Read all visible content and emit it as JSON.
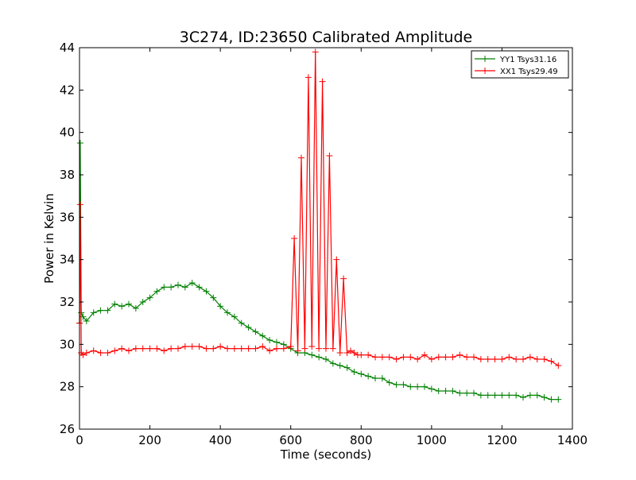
{
  "chart_data": {
    "type": "line",
    "title": "3C274, ID:23650 Calibrated Amplitude",
    "xlabel": "Time (seconds)",
    "ylabel": "Power in Kelvin",
    "xlim": [
      0,
      1400
    ],
    "ylim": [
      26,
      44
    ],
    "xticks": [
      0,
      200,
      400,
      600,
      800,
      1000,
      1200,
      1400
    ],
    "yticks": [
      26,
      28,
      30,
      32,
      34,
      36,
      38,
      40,
      42,
      44
    ],
    "grid": false,
    "legend_position": "top-right",
    "marker": "plus",
    "series": [
      {
        "name": "YY1 Tsys31.16",
        "color": "#008000",
        "x": [
          0,
          2,
          5,
          10,
          20,
          40,
          60,
          80,
          100,
          120,
          140,
          160,
          180,
          200,
          220,
          240,
          260,
          280,
          300,
          320,
          340,
          360,
          380,
          400,
          420,
          440,
          460,
          480,
          500,
          520,
          540,
          560,
          580,
          600,
          620,
          640,
          660,
          680,
          700,
          720,
          740,
          760,
          780,
          800,
          820,
          840,
          860,
          880,
          900,
          920,
          940,
          960,
          980,
          1000,
          1020,
          1040,
          1060,
          1080,
          1100,
          1120,
          1140,
          1160,
          1180,
          1200,
          1220,
          1240,
          1260,
          1280,
          1300,
          1320,
          1340,
          1360
        ],
        "y": [
          31.0,
          39.5,
          31.5,
          31.3,
          31.1,
          31.5,
          31.6,
          31.6,
          31.9,
          31.8,
          31.9,
          31.7,
          32.0,
          32.2,
          32.5,
          32.7,
          32.7,
          32.8,
          32.7,
          32.9,
          32.7,
          32.5,
          32.2,
          31.8,
          31.5,
          31.3,
          31.0,
          30.8,
          30.6,
          30.4,
          30.2,
          30.1,
          30.0,
          29.8,
          29.6,
          29.6,
          29.5,
          29.4,
          29.3,
          29.1,
          29.0,
          28.9,
          28.7,
          28.6,
          28.5,
          28.4,
          28.4,
          28.2,
          28.1,
          28.1,
          28.0,
          28.0,
          28.0,
          27.9,
          27.8,
          27.8,
          27.8,
          27.7,
          27.7,
          27.7,
          27.6,
          27.6,
          27.6,
          27.6,
          27.6,
          27.6,
          27.5,
          27.6,
          27.6,
          27.5,
          27.4,
          27.4
        ]
      },
      {
        "name": "XX1 Tsys29.49",
        "color": "#ff0000",
        "x": [
          0,
          2,
          5,
          10,
          20,
          40,
          60,
          80,
          100,
          120,
          140,
          160,
          180,
          200,
          220,
          240,
          260,
          280,
          300,
          320,
          340,
          360,
          380,
          400,
          420,
          440,
          460,
          480,
          500,
          520,
          540,
          560,
          580,
          600,
          610,
          620,
          630,
          640,
          650,
          660,
          670,
          680,
          690,
          700,
          710,
          720,
          730,
          740,
          750,
          760,
          770,
          780,
          790,
          800,
          820,
          840,
          860,
          880,
          900,
          920,
          940,
          960,
          980,
          1000,
          1020,
          1040,
          1060,
          1080,
          1100,
          1120,
          1140,
          1160,
          1180,
          1200,
          1220,
          1240,
          1260,
          1280,
          1300,
          1320,
          1340,
          1360
        ],
        "y": [
          31.0,
          36.6,
          29.6,
          29.5,
          29.6,
          29.7,
          29.6,
          29.6,
          29.7,
          29.8,
          29.7,
          29.8,
          29.8,
          29.8,
          29.8,
          29.7,
          29.8,
          29.8,
          29.9,
          29.9,
          29.9,
          29.8,
          29.8,
          29.9,
          29.8,
          29.8,
          29.8,
          29.8,
          29.8,
          29.9,
          29.7,
          29.8,
          29.8,
          29.9,
          35.0,
          29.7,
          38.8,
          29.8,
          42.6,
          29.9,
          43.8,
          29.8,
          42.4,
          29.8,
          38.9,
          29.8,
          34.0,
          29.6,
          33.1,
          29.6,
          29.7,
          29.6,
          29.5,
          29.5,
          29.5,
          29.4,
          29.4,
          29.4,
          29.3,
          29.4,
          29.4,
          29.3,
          29.5,
          29.3,
          29.4,
          29.4,
          29.4,
          29.5,
          29.4,
          29.4,
          29.3,
          29.3,
          29.3,
          29.3,
          29.4,
          29.3,
          29.3,
          29.4,
          29.3,
          29.3,
          29.2,
          29.0
        ]
      }
    ]
  }
}
